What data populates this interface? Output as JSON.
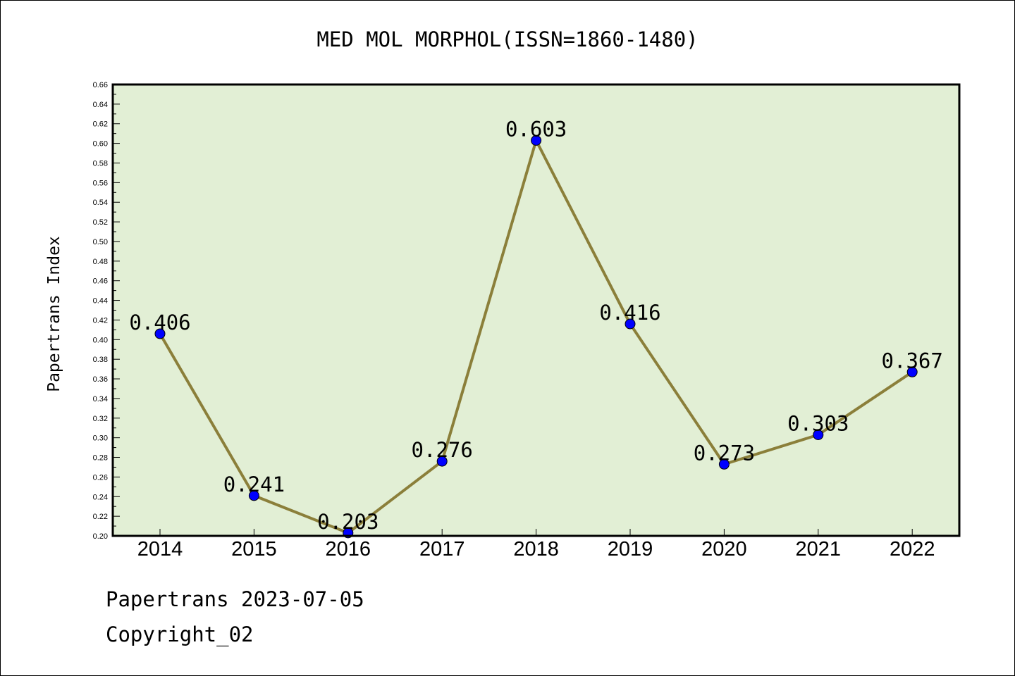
{
  "chart_data": {
    "type": "line",
    "title": "MED MOL MORPHOL(ISSN=1860-1480)",
    "xlabel": "",
    "ylabel": "Papertrans Index",
    "categories": [
      "2014",
      "2015",
      "2016",
      "2017",
      "2018",
      "2019",
      "2020",
      "2021",
      "2022"
    ],
    "series": [
      {
        "values": [
          0.406,
          0.241,
          0.203,
          0.276,
          0.603,
          0.416,
          0.273,
          0.303,
          0.367
        ],
        "data_labels": [
          "0.406",
          "0.241",
          "0.203",
          "0.276",
          "0.603",
          "0.416",
          "0.273",
          "0.303",
          "0.367"
        ]
      }
    ],
    "ylim": [
      0.2,
      0.66
    ],
    "yticks": [
      "0.20",
      "0.22",
      "0.24",
      "0.26",
      "0.28",
      "0.30",
      "0.32",
      "0.34",
      "0.36",
      "0.38",
      "0.40",
      "0.42",
      "0.44",
      "0.46",
      "0.48",
      "0.50",
      "0.52",
      "0.54",
      "0.56",
      "0.58",
      "0.60",
      "0.62",
      "0.64",
      "0.66"
    ],
    "grid": false,
    "legend": "none",
    "colors": {
      "line": "#8b7f3a",
      "marker": "#0000ff",
      "plot_background": "#e2efd5"
    }
  },
  "footer": {
    "line1": "Papertrans 2023-07-05",
    "line2": "Copyright_02"
  }
}
